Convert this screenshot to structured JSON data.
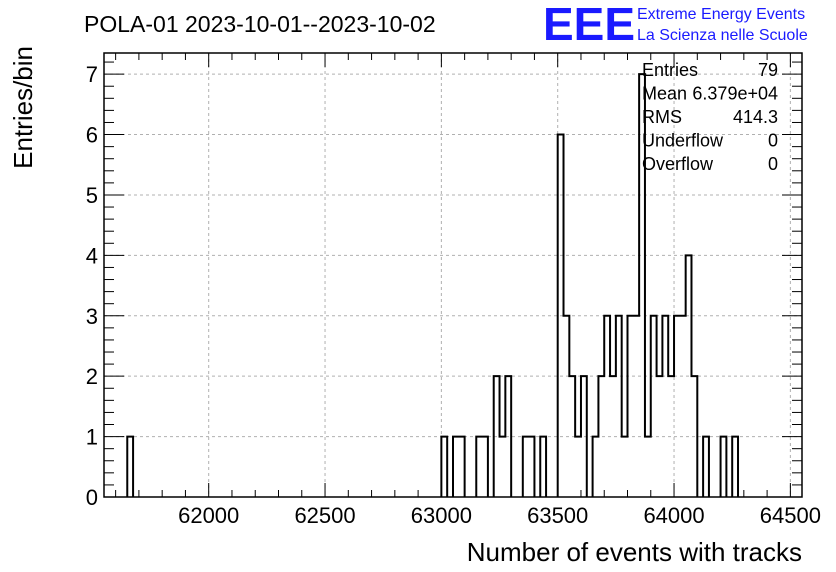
{
  "title": "POLA-01 2023-10-01--2023-10-02",
  "logo": {
    "mark": "EEE",
    "line1": "Extreme Energy Events",
    "line2": "La Scienza nelle Scuole",
    "color": "#1a1aff"
  },
  "stats": [
    {
      "label": "Entries",
      "value": "79"
    },
    {
      "label": "Mean",
      "value": "6.379e+04"
    },
    {
      "label": "RMS",
      "value": "414.3"
    },
    {
      "label": "Underflow",
      "value": "0"
    },
    {
      "label": "Overflow",
      "value": "0"
    }
  ],
  "chart_data": {
    "type": "histogram",
    "xlabel": "Number of events with tracks",
    "ylabel": "Entries/bin",
    "xlim": [
      61550,
      64550
    ],
    "ylim": [
      0,
      7.35
    ],
    "bin_width": 25,
    "x_ticks": [
      62000,
      62500,
      63000,
      63500,
      64000,
      64500
    ],
    "x_tick_labels": [
      "62000",
      "62500",
      "63000",
      "63500",
      "64000",
      "64500"
    ],
    "y_ticks": [
      0,
      1,
      2,
      3,
      4,
      5,
      6,
      7
    ],
    "y_tick_labels": [
      "0",
      "1",
      "2",
      "3",
      "4",
      "5",
      "6",
      "7"
    ],
    "grid": true,
    "line_color": "#000000",
    "bins": [
      {
        "low": 61650,
        "count": 1
      },
      {
        "low": 63000,
        "count": 1
      },
      {
        "low": 63050,
        "count": 1
      },
      {
        "low": 63075,
        "count": 1
      },
      {
        "low": 63150,
        "count": 1
      },
      {
        "low": 63175,
        "count": 1
      },
      {
        "low": 63225,
        "count": 2
      },
      {
        "low": 63250,
        "count": 1
      },
      {
        "low": 63275,
        "count": 2
      },
      {
        "low": 63350,
        "count": 1
      },
      {
        "low": 63375,
        "count": 1
      },
      {
        "low": 63425,
        "count": 1
      },
      {
        "low": 63500,
        "count": 6
      },
      {
        "low": 63525,
        "count": 3
      },
      {
        "low": 63550,
        "count": 2
      },
      {
        "low": 63575,
        "count": 1
      },
      {
        "low": 63600,
        "count": 2
      },
      {
        "low": 63650,
        "count": 1
      },
      {
        "low": 63675,
        "count": 2
      },
      {
        "low": 63700,
        "count": 3
      },
      {
        "low": 63725,
        "count": 2
      },
      {
        "low": 63750,
        "count": 3
      },
      {
        "low": 63775,
        "count": 1
      },
      {
        "low": 63800,
        "count": 3
      },
      {
        "low": 63825,
        "count": 3
      },
      {
        "low": 63850,
        "count": 7
      },
      {
        "low": 63875,
        "count": 1
      },
      {
        "low": 63900,
        "count": 3
      },
      {
        "low": 63925,
        "count": 2
      },
      {
        "low": 63950,
        "count": 3
      },
      {
        "low": 63975,
        "count": 2
      },
      {
        "low": 64000,
        "count": 3
      },
      {
        "low": 64025,
        "count": 3
      },
      {
        "low": 64050,
        "count": 4
      },
      {
        "low": 64075,
        "count": 2
      },
      {
        "low": 64125,
        "count": 1
      },
      {
        "low": 64200,
        "count": 1
      },
      {
        "low": 64250,
        "count": 1
      }
    ]
  }
}
